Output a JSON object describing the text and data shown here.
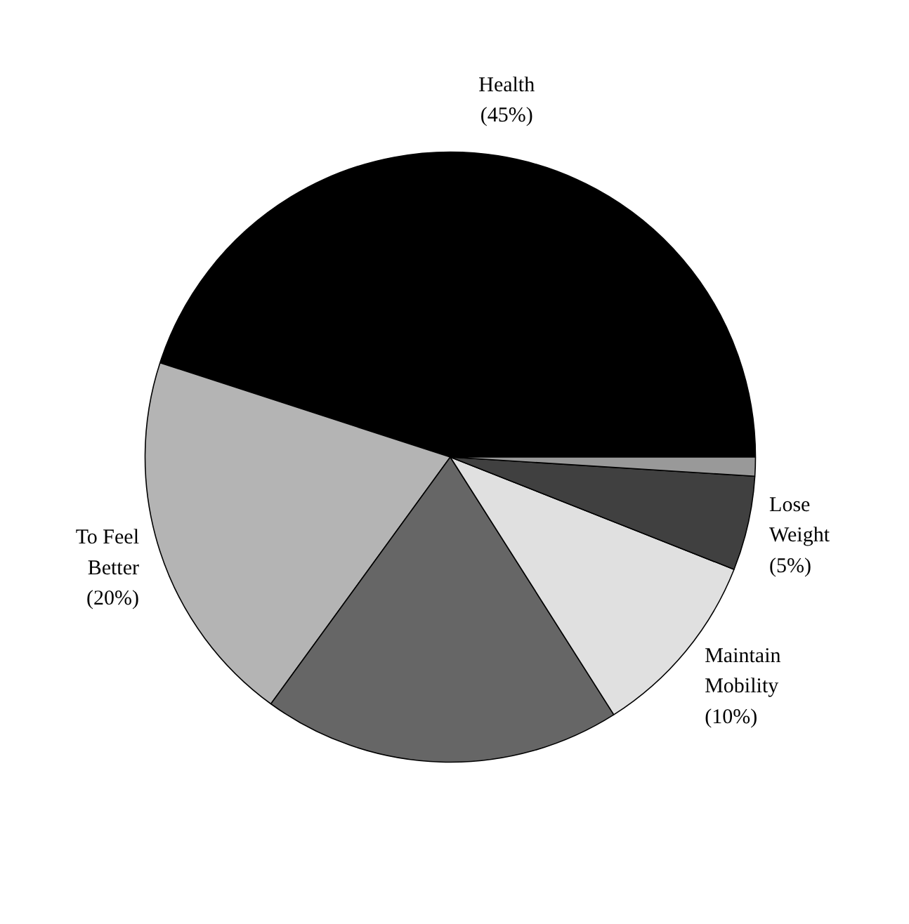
{
  "chart_data": {
    "type": "pie",
    "categories": [
      "Health",
      "To Feel Better",
      null,
      "Maintain Mobility",
      "Lose Weight",
      null
    ],
    "values": [
      45,
      20,
      19,
      10,
      5,
      1
    ],
    "colors": [
      "#000000",
      "#b4b4b4",
      "#666666",
      "#e0e0e0",
      "#404040",
      "#999999"
    ],
    "value_labels": [
      "(45%)",
      "(20%)",
      null,
      "(10%)",
      "(5%)",
      null
    ]
  }
}
